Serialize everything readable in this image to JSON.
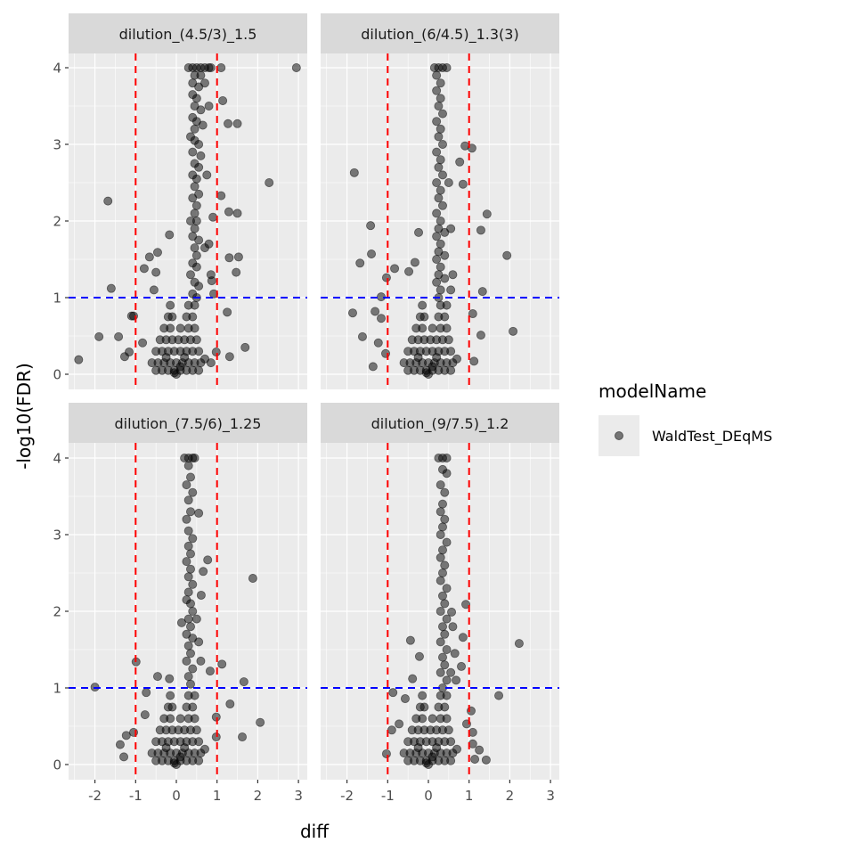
{
  "chart_data": {
    "type": "scatter",
    "xlabel": "diff",
    "ylabel": "-log10(FDR)",
    "xlim": [
      -2.65,
      3.2
    ],
    "ylim": [
      -0.2,
      4.2
    ],
    "x_ticks": [
      "-2",
      "-1",
      "0",
      "1",
      "2",
      "3"
    ],
    "x_tick_values": [
      -2,
      -1,
      0,
      1,
      2,
      3
    ],
    "y_ticks": [
      "0",
      "1",
      "2",
      "3",
      "4"
    ],
    "y_tick_values": [
      0,
      1,
      2,
      3,
      4
    ],
    "grid": true,
    "vlines": {
      "values": [
        -1,
        1
      ],
      "color": "#FF0000",
      "style": "dashed"
    },
    "hline": {
      "value": 1,
      "color": "#0000FF",
      "style": "dashed"
    },
    "point_color": "#000000",
    "point_alpha": 0.5,
    "legend": {
      "title": "modelName",
      "entries": [
        "WaldTest_DEqMS"
      ],
      "position": "right"
    },
    "cluster": [
      [
        -0.5,
        0.05
      ],
      [
        -0.35,
        0.05
      ],
      [
        -0.2,
        0.05
      ],
      [
        -0.05,
        0.05
      ],
      [
        0.1,
        0.05
      ],
      [
        0.25,
        0.05
      ],
      [
        0.4,
        0.05
      ],
      [
        0.55,
        0.05
      ],
      [
        -0.6,
        0.15
      ],
      [
        -0.45,
        0.15
      ],
      [
        -0.3,
        0.15
      ],
      [
        -0.15,
        0.15
      ],
      [
        0,
        0.15
      ],
      [
        0.15,
        0.15
      ],
      [
        0.3,
        0.15
      ],
      [
        0.45,
        0.15
      ],
      [
        0.6,
        0.15
      ],
      [
        0.7,
        0.2
      ],
      [
        -0.5,
        0.3
      ],
      [
        -0.35,
        0.3
      ],
      [
        -0.2,
        0.3
      ],
      [
        -0.05,
        0.3
      ],
      [
        0.1,
        0.3
      ],
      [
        0.25,
        0.3
      ],
      [
        0.4,
        0.3
      ],
      [
        0.55,
        0.3
      ],
      [
        -0.4,
        0.45
      ],
      [
        -0.25,
        0.45
      ],
      [
        -0.1,
        0.45
      ],
      [
        0.05,
        0.45
      ],
      [
        0.2,
        0.45
      ],
      [
        0.35,
        0.45
      ],
      [
        0.5,
        0.45
      ],
      [
        -0.3,
        0.6
      ],
      [
        -0.15,
        0.6
      ],
      [
        0.1,
        0.6
      ],
      [
        0.3,
        0.6
      ],
      [
        0.45,
        0.6
      ],
      [
        -0.2,
        0.75
      ],
      [
        -0.1,
        0.75
      ],
      [
        0.25,
        0.75
      ],
      [
        0.4,
        0.75
      ],
      [
        -0.15,
        0.9
      ],
      [
        0.3,
        0.9
      ],
      [
        0.45,
        0.9
      ],
      [
        -0.05,
        0.02
      ],
      [
        0.0,
        0.0
      ],
      [
        0.1,
        0.1
      ],
      [
        -0.25,
        0.22
      ],
      [
        0.2,
        0.22
      ]
    ],
    "panels": [
      {
        "label": "dilution_(4.5/3)_1.5",
        "points": [
          [
            0.3,
            4
          ],
          [
            0.4,
            4
          ],
          [
            0.5,
            4
          ],
          [
            0.6,
            4
          ],
          [
            0.7,
            4
          ],
          [
            0.8,
            4
          ],
          [
            0.85,
            4
          ],
          [
            0.45,
            3.9
          ],
          [
            0.6,
            3.9
          ],
          [
            0.4,
            3.8
          ],
          [
            0.55,
            3.75
          ],
          [
            0.7,
            3.8
          ],
          [
            0.4,
            3.65
          ],
          [
            0.5,
            3.6
          ],
          [
            0.45,
            3.5
          ],
          [
            0.6,
            3.45
          ],
          [
            0.4,
            3.35
          ],
          [
            0.5,
            3.3
          ],
          [
            0.65,
            3.25
          ],
          [
            0.45,
            3.2
          ],
          [
            0.35,
            3.1
          ],
          [
            0.45,
            3.05
          ],
          [
            0.55,
            3.0
          ],
          [
            0.4,
            2.9
          ],
          [
            0.6,
            2.85
          ],
          [
            0.45,
            2.75
          ],
          [
            0.55,
            2.7
          ],
          [
            0.4,
            2.6
          ],
          [
            0.5,
            2.55
          ],
          [
            0.45,
            2.45
          ],
          [
            0.55,
            2.35
          ],
          [
            0.4,
            2.3
          ],
          [
            0.5,
            2.2
          ],
          [
            0.45,
            2.1
          ],
          [
            0.35,
            2.0
          ],
          [
            0.5,
            2.0
          ],
          [
            0.45,
            1.9
          ],
          [
            0.4,
            1.8
          ],
          [
            0.55,
            1.75
          ],
          [
            0.45,
            1.65
          ],
          [
            0.5,
            1.55
          ],
          [
            0.4,
            1.45
          ],
          [
            0.5,
            1.4
          ],
          [
            0.35,
            1.3
          ],
          [
            0.45,
            1.2
          ],
          [
            0.55,
            1.15
          ],
          [
            0.4,
            1.05
          ],
          [
            0.5,
            1.0
          ],
          [
            0.7,
            1.65
          ],
          [
            0.8,
            1.7
          ],
          [
            0.9,
            2.05
          ],
          [
            0.85,
            1.3
          ],
          [
            0.75,
            2.6
          ],
          [
            0.8,
            3.5
          ],
          [
            2.95,
            4.0
          ],
          [
            2.28,
            2.5
          ],
          [
            -1.68,
            2.26
          ],
          [
            -1.6,
            1.12
          ],
          [
            -2.4,
            0.19
          ],
          [
            -1.9,
            0.49
          ],
          [
            -1.42,
            0.49
          ],
          [
            1.69,
            0.35
          ],
          [
            1.31,
            0.23
          ],
          [
            1.5,
            3.27
          ],
          [
            1.14,
            3.57
          ],
          [
            1.1,
            4.0
          ],
          [
            1.27,
            3.27
          ],
          [
            1.1,
            2.33
          ],
          [
            1.5,
            2.1
          ],
          [
            1.29,
            2.12
          ],
          [
            1.53,
            1.53
          ],
          [
            1.47,
            1.33
          ],
          [
            1.3,
            1.52
          ],
          [
            -0.17,
            1.82
          ],
          [
            -0.66,
            1.53
          ],
          [
            -0.46,
            1.59
          ],
          [
            -0.5,
            1.33
          ],
          [
            -0.55,
            1.1
          ],
          [
            -0.79,
            1.38
          ],
          [
            -1.05,
            0.76
          ],
          [
            -1.1,
            0.76
          ],
          [
            -1.27,
            0.23
          ],
          [
            -1.16,
            0.29
          ],
          [
            -0.83,
            0.41
          ],
          [
            1.25,
            0.81
          ],
          [
            0.98,
            0.29
          ],
          [
            0.85,
            0.15
          ],
          [
            0.92,
            1.05
          ],
          [
            0.87,
            1.22
          ]
        ]
      },
      {
        "label": "dilution_(6/4.5)_1.3(3)",
        "points": [
          [
            0.15,
            4
          ],
          [
            0.25,
            4
          ],
          [
            0.35,
            4
          ],
          [
            0.45,
            4
          ],
          [
            0.2,
            3.9
          ],
          [
            0.3,
            3.8
          ],
          [
            0.2,
            3.7
          ],
          [
            0.3,
            3.6
          ],
          [
            0.25,
            3.5
          ],
          [
            0.35,
            3.4
          ],
          [
            0.2,
            3.3
          ],
          [
            0.3,
            3.2
          ],
          [
            0.25,
            3.1
          ],
          [
            0.35,
            3.0
          ],
          [
            0.2,
            2.9
          ],
          [
            0.3,
            2.8
          ],
          [
            0.25,
            2.7
          ],
          [
            0.35,
            2.6
          ],
          [
            0.2,
            2.5
          ],
          [
            0.3,
            2.4
          ],
          [
            0.25,
            2.3
          ],
          [
            0.35,
            2.2
          ],
          [
            0.2,
            2.1
          ],
          [
            0.3,
            2.0
          ],
          [
            0.25,
            1.9
          ],
          [
            0.4,
            1.85
          ],
          [
            0.2,
            1.8
          ],
          [
            0.3,
            1.7
          ],
          [
            0.25,
            1.6
          ],
          [
            0.4,
            1.55
          ],
          [
            0.2,
            1.5
          ],
          [
            0.3,
            1.4
          ],
          [
            0.25,
            1.3
          ],
          [
            0.4,
            1.25
          ],
          [
            0.2,
            1.2
          ],
          [
            0.3,
            1.1
          ],
          [
            0.25,
            1.0
          ],
          [
            0.5,
            2.5
          ],
          [
            0.55,
            1.9
          ],
          [
            0.6,
            1.3
          ],
          [
            0.55,
            1.1
          ],
          [
            1.07,
            2.95
          ],
          [
            0.9,
            2.98
          ],
          [
            0.77,
            2.77
          ],
          [
            0.85,
            2.48
          ],
          [
            -1.82,
            2.63
          ],
          [
            -1.42,
            1.94
          ],
          [
            -0.24,
            1.85
          ],
          [
            -1.4,
            1.57
          ],
          [
            -1.68,
            1.45
          ],
          [
            1.44,
            2.09
          ],
          [
            1.29,
            1.88
          ],
          [
            1.93,
            1.55
          ],
          [
            2.08,
            0.56
          ],
          [
            -1.86,
            0.8
          ],
          [
            -1.62,
            0.49
          ],
          [
            -1.36,
            0.1
          ],
          [
            -1.03,
            1.26
          ],
          [
            -0.83,
            1.38
          ],
          [
            -1.31,
            0.82
          ],
          [
            -1.16,
            0.73
          ],
          [
            -0.33,
            1.46
          ],
          [
            -0.48,
            1.34
          ],
          [
            1.33,
            1.08
          ],
          [
            1.09,
            0.79
          ],
          [
            1.29,
            0.51
          ],
          [
            1.12,
            0.17
          ],
          [
            -1.05,
            0.27
          ],
          [
            -1.23,
            0.41
          ],
          [
            -1.16,
            1.01
          ]
        ]
      },
      {
        "label": "dilution_(7.5/6)_1.25",
        "points": [
          [
            0.2,
            4
          ],
          [
            0.3,
            4
          ],
          [
            0.4,
            4
          ],
          [
            0.45,
            4
          ],
          [
            0.3,
            3.9
          ],
          [
            0.35,
            3.75
          ],
          [
            0.25,
            3.65
          ],
          [
            0.4,
            3.55
          ],
          [
            0.3,
            3.45
          ],
          [
            0.35,
            3.3
          ],
          [
            0.25,
            3.2
          ],
          [
            0.3,
            3.05
          ],
          [
            0.4,
            2.95
          ],
          [
            0.3,
            2.85
          ],
          [
            0.35,
            2.75
          ],
          [
            0.25,
            2.65
          ],
          [
            0.35,
            2.55
          ],
          [
            0.3,
            2.45
          ],
          [
            0.4,
            2.35
          ],
          [
            0.3,
            2.25
          ],
          [
            0.25,
            2.15
          ],
          [
            0.35,
            2.1
          ],
          [
            0.4,
            2.0
          ],
          [
            0.3,
            1.9
          ],
          [
            0.35,
            1.8
          ],
          [
            0.25,
            1.7
          ],
          [
            0.4,
            1.65
          ],
          [
            0.3,
            1.55
          ],
          [
            0.35,
            1.45
          ],
          [
            0.25,
            1.35
          ],
          [
            0.4,
            1.25
          ],
          [
            0.3,
            1.15
          ],
          [
            0.35,
            1.05
          ],
          [
            0.5,
            1.9
          ],
          [
            0.55,
            1.6
          ],
          [
            0.6,
            1.35
          ],
          [
            1.88,
            2.43
          ],
          [
            -2.0,
            1.01
          ],
          [
            -0.99,
            1.34
          ],
          [
            1.12,
            1.31
          ],
          [
            1.66,
            1.08
          ],
          [
            1.32,
            0.79
          ],
          [
            2.06,
            0.55
          ],
          [
            1.62,
            0.36
          ],
          [
            0.77,
            2.67
          ],
          [
            0.66,
            2.52
          ],
          [
            0.61,
            2.21
          ],
          [
            0.55,
            3.28
          ],
          [
            0.83,
            1.22
          ],
          [
            -0.46,
            1.15
          ],
          [
            -0.17,
            1.12
          ],
          [
            -0.74,
            0.94
          ],
          [
            -0.77,
            0.65
          ],
          [
            -1.23,
            0.38
          ],
          [
            -1.38,
            0.26
          ],
          [
            -1.29,
            0.1
          ],
          [
            -1.05,
            0.42
          ],
          [
            0.13,
            1.85
          ],
          [
            0.98,
            0.62
          ],
          [
            0.98,
            0.36
          ]
        ]
      },
      {
        "label": "dilution_(9/7.5)_1.2",
        "points": [
          [
            0.25,
            4
          ],
          [
            0.35,
            4
          ],
          [
            0.45,
            4
          ],
          [
            0.35,
            3.85
          ],
          [
            0.45,
            3.8
          ],
          [
            0.3,
            3.65
          ],
          [
            0.4,
            3.55
          ],
          [
            0.35,
            3.4
          ],
          [
            0.3,
            3.3
          ],
          [
            0.4,
            3.2
          ],
          [
            0.35,
            3.1
          ],
          [
            0.3,
            3.0
          ],
          [
            0.45,
            2.9
          ],
          [
            0.35,
            2.8
          ],
          [
            0.3,
            2.7
          ],
          [
            0.4,
            2.6
          ],
          [
            0.35,
            2.5
          ],
          [
            0.3,
            2.4
          ],
          [
            0.45,
            2.3
          ],
          [
            0.35,
            2.2
          ],
          [
            0.4,
            2.1
          ],
          [
            0.3,
            2.0
          ],
          [
            0.45,
            1.9
          ],
          [
            0.35,
            1.8
          ],
          [
            0.4,
            1.7
          ],
          [
            0.3,
            1.6
          ],
          [
            0.45,
            1.5
          ],
          [
            0.35,
            1.4
          ],
          [
            0.4,
            1.3
          ],
          [
            0.3,
            1.2
          ],
          [
            0.45,
            1.1
          ],
          [
            0.35,
            1.0
          ],
          [
            0.6,
            1.8
          ],
          [
            0.65,
            1.45
          ],
          [
            0.55,
            1.2
          ],
          [
            2.23,
            1.58
          ],
          [
            1.73,
            0.9
          ],
          [
            0.92,
            2.09
          ],
          [
            -0.44,
            1.62
          ],
          [
            -0.22,
            1.41
          ],
          [
            -0.39,
            1.12
          ],
          [
            -0.87,
            0.94
          ],
          [
            0.85,
            1.66
          ],
          [
            0.81,
            1.28
          ],
          [
            1.05,
            0.7
          ],
          [
            0.94,
            0.53
          ],
          [
            1.09,
            0.42
          ],
          [
            1.09,
            0.27
          ],
          [
            1.25,
            0.19
          ],
          [
            1.42,
            0.06
          ],
          [
            1.14,
            0.07
          ],
          [
            -1.03,
            0.14
          ],
          [
            -0.9,
            0.45
          ],
          [
            -0.72,
            0.53
          ],
          [
            -0.57,
            0.86
          ],
          [
            0.68,
            1.1
          ],
          [
            0.57,
            1.99
          ]
        ]
      }
    ]
  }
}
